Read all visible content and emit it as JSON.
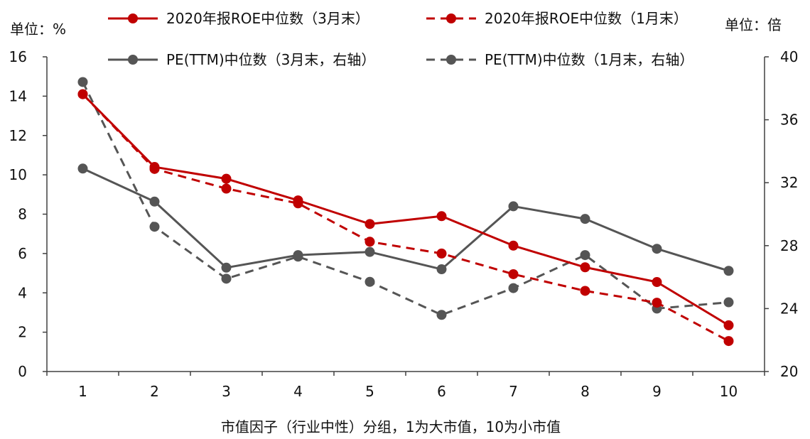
{
  "chart_data": {
    "type": "line",
    "left_unit": "单位：%",
    "right_unit": "单位：倍",
    "xlabel": "市值因子（行业中性）分组，1为大市值，10为小市值",
    "categories": [
      "1",
      "2",
      "3",
      "4",
      "5",
      "6",
      "7",
      "8",
      "9",
      "10"
    ],
    "y_left": {
      "min": 0,
      "max": 16,
      "ticks": [
        "0",
        "2",
        "4",
        "6",
        "8",
        "10",
        "12",
        "14",
        "16"
      ]
    },
    "y_right": {
      "min": 20,
      "max": 40,
      "ticks": [
        "20",
        "24",
        "28",
        "32",
        "36",
        "40"
      ]
    },
    "series": [
      {
        "name": "2020年报ROE中位数（3月末）",
        "axis": "left",
        "color": "#c00000",
        "dash": false,
        "values": [
          14.1,
          10.4,
          9.8,
          8.7,
          7.5,
          7.9,
          6.4,
          5.3,
          4.55,
          2.35
        ]
      },
      {
        "name": "2020年报ROE中位数（1月末）",
        "axis": "left",
        "color": "#c00000",
        "dash": true,
        "values": [
          14.1,
          10.3,
          9.3,
          8.55,
          6.6,
          6.0,
          4.95,
          4.1,
          3.5,
          1.55
        ]
      },
      {
        "name": "PE(TTM)中位数（3月末，右轴）",
        "axis": "right",
        "color": "#555555",
        "dash": false,
        "values": [
          32.9,
          30.8,
          26.6,
          27.4,
          27.6,
          26.5,
          30.5,
          29.7,
          27.8,
          26.4
        ]
      },
      {
        "name": "PE(TTM)中位数（1月末，右轴）",
        "axis": "right",
        "color": "#555555",
        "dash": true,
        "values": [
          38.4,
          29.2,
          25.9,
          27.3,
          25.7,
          23.6,
          25.3,
          27.4,
          24.0,
          24.4
        ]
      }
    ]
  }
}
